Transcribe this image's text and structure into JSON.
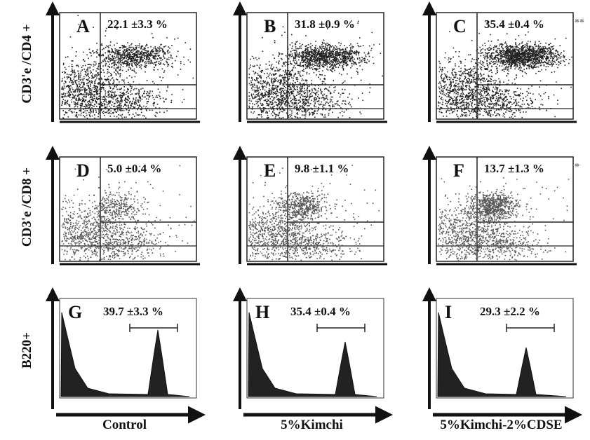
{
  "row_labels": [
    "CD3'e /CD4 +",
    "CD3'e /CD8 +",
    "B220+"
  ],
  "column_labels": [
    "Control",
    "5%Kimchi",
    "5%Kimchi-2%CDSE"
  ],
  "panels": [
    {
      "letter": "A",
      "value": "22.1 ±3.3 %"
    },
    {
      "letter": "B",
      "value": "31.8 ±0.9 %"
    },
    {
      "letter": "C",
      "value": "35.4 ±0.4 %",
      "significance": "**"
    },
    {
      "letter": "D",
      "value": "5.0 ±0.4 %"
    },
    {
      "letter": "E",
      "value": "9.8 ±1.1 %"
    },
    {
      "letter": "F",
      "value": "13.7 ±1.3 %",
      "significance": "*"
    },
    {
      "letter": "G",
      "value": "39.7 ±3.3 %"
    },
    {
      "letter": "H",
      "value": "35.4 ±0.4 %"
    },
    {
      "letter": "I",
      "value": "29.3 ±2.2 %"
    }
  ]
}
